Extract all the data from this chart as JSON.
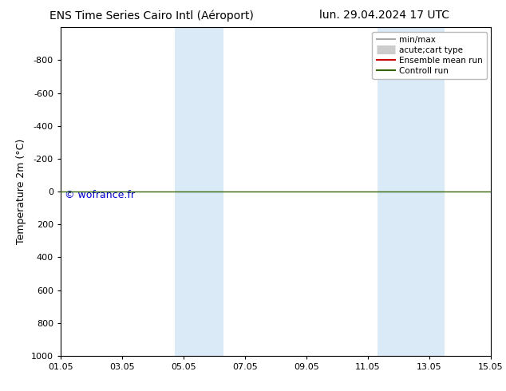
{
  "title_left": "ENS Time Series Cairo Intl (Aéroport)",
  "title_right": "lun. 29.04.2024 17 UTC",
  "ylabel": "Temperature 2m (°C)",
  "xtick_labels": [
    "01.05",
    "03.05",
    "05.05",
    "07.05",
    "09.05",
    "11.05",
    "13.05",
    "15.05"
  ],
  "xtick_positions": [
    0,
    2,
    4,
    6,
    8,
    10,
    12,
    14
  ],
  "xlim": [
    0,
    14
  ],
  "ylim": [
    -1000,
    1000
  ],
  "ytick_positions": [
    -800,
    -600,
    -400,
    -200,
    0,
    200,
    400,
    600,
    800,
    1000
  ],
  "ytick_labels": [
    "-800",
    "-600",
    "-400",
    "-200",
    "0",
    "200",
    "400",
    "600",
    "800",
    "1000"
  ],
  "shaded_bands": [
    {
      "x_start": 3.7,
      "x_end": 5.3
    },
    {
      "x_start": 10.3,
      "x_end": 12.5
    }
  ],
  "band_color": "#daeaf7",
  "horizontal_line_y": 0,
  "control_run_color": "#336600",
  "ensemble_mean_color": "#cc0000",
  "min_max_color": "#aaaaaa",
  "acute_color": "#cccccc",
  "watermark_text": "© wofrance.fr",
  "watermark_color": "#0000cc",
  "bg_color": "#ffffff",
  "legend_entries": [
    {
      "label": "min/max",
      "color": "#aaaaaa",
      "lw": 1.5,
      "style": "solid"
    },
    {
      "label": "acute;cart type",
      "color": "#cccccc",
      "lw": 8,
      "style": "solid"
    },
    {
      "label": "Ensemble mean run",
      "color": "#cc0000",
      "lw": 1.5,
      "style": "solid"
    },
    {
      "label": "Controll run",
      "color": "#336600",
      "lw": 1.5,
      "style": "solid"
    }
  ],
  "font_size_title": 10,
  "font_size_axis": 9,
  "font_size_legend": 7.5,
  "font_size_tick": 8,
  "font_size_watermark": 9
}
